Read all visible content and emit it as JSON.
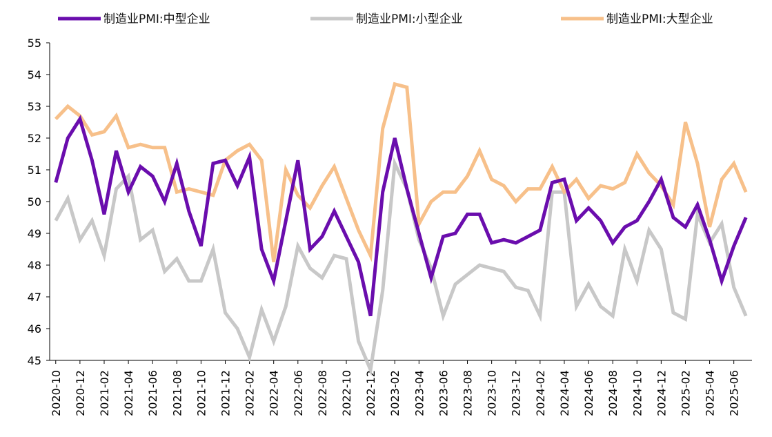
{
  "chart_data": {
    "type": "line",
    "x": [
      "2020-10",
      "2020-11",
      "2020-12",
      "2021-01",
      "2021-02",
      "2021-03",
      "2021-04",
      "2021-05",
      "2021-06",
      "2021-07",
      "2021-08",
      "2021-09",
      "2021-10",
      "2021-11",
      "2021-12",
      "2022-01",
      "2022-02",
      "2022-03",
      "2022-04",
      "2022-05",
      "2022-06",
      "2022-07",
      "2022-08",
      "2022-09",
      "2022-10",
      "2022-11",
      "2022-12",
      "2023-01",
      "2023-02",
      "2023-03",
      "2023-04",
      "2023-05",
      "2023-06",
      "2023-07",
      "2023-08",
      "2023-09",
      "2023-10",
      "2023-11",
      "2023-12",
      "2024-01",
      "2024-02",
      "2024-03",
      "2024-04",
      "2024-05",
      "2024-06",
      "2024-07",
      "2024-08",
      "2024-09",
      "2024-10",
      "2024-11",
      "2024-12",
      "2025-01",
      "2025-02",
      "2025-03",
      "2025-04",
      "2025-05",
      "2025-06",
      "2025-07"
    ],
    "tick_labels": [
      "2020-10",
      "2020-12",
      "2021-02",
      "2021-04",
      "2021-06",
      "2021-08",
      "2021-10",
      "2021-12",
      "2022-02",
      "2022-04",
      "2022-06",
      "2022-08",
      "2022-10",
      "2022-12",
      "2023-02",
      "2023-04",
      "2023-06",
      "2023-08",
      "2023-10",
      "2023-12",
      "2024-02",
      "2024-04",
      "2024-06",
      "2024-08",
      "2024-10",
      "2024-12",
      "2025-02",
      "2025-04",
      "2025-06"
    ],
    "series": [
      {
        "name": "制造业PMI:中型企业",
        "color": "#6a0dad",
        "values": [
          50.6,
          52.0,
          52.6,
          51.3,
          49.6,
          51.6,
          50.3,
          51.1,
          50.8,
          50.0,
          51.2,
          49.7,
          48.6,
          51.2,
          51.3,
          50.5,
          51.4,
          48.5,
          47.5,
          49.4,
          51.3,
          48.5,
          48.9,
          49.7,
          48.9,
          48.1,
          46.4,
          50.3,
          52.0,
          50.4,
          49.0,
          47.6,
          48.9,
          49.0,
          49.6,
          49.6,
          48.7,
          48.8,
          48.7,
          48.9,
          49.1,
          50.6,
          50.7,
          49.4,
          49.8,
          49.4,
          48.7,
          49.2,
          49.4,
          50.0,
          50.7,
          49.5,
          49.2,
          49.9,
          48.8,
          47.5,
          48.6,
          49.5
        ]
      },
      {
        "name": "制造业PMI:小型企业",
        "color": "#c8c8c8",
        "values": [
          49.4,
          50.1,
          48.8,
          49.4,
          48.3,
          50.4,
          50.8,
          48.8,
          49.1,
          47.8,
          48.2,
          47.5,
          47.5,
          48.5,
          46.5,
          46.0,
          45.1,
          46.6,
          45.6,
          46.7,
          48.6,
          47.9,
          47.6,
          48.3,
          48.2,
          45.6,
          44.7,
          47.2,
          51.2,
          50.4,
          48.8,
          47.9,
          46.4,
          47.4,
          47.7,
          48.0,
          47.9,
          47.8,
          47.3,
          47.2,
          46.4,
          50.3,
          50.3,
          46.7,
          47.4,
          46.7,
          46.4,
          48.5,
          47.5,
          49.1,
          48.5,
          46.5,
          46.3,
          49.6,
          48.7,
          49.3,
          47.3,
          46.4
        ]
      },
      {
        "name": "制造业PMI:大型企业",
        "color": "#f7c08a",
        "values": [
          52.6,
          53.0,
          52.7,
          52.1,
          52.2,
          52.7,
          51.7,
          51.8,
          51.7,
          51.7,
          50.3,
          50.4,
          50.3,
          50.2,
          51.3,
          51.6,
          51.8,
          51.3,
          48.1,
          51.0,
          50.2,
          49.8,
          50.5,
          51.1,
          50.1,
          49.1,
          48.3,
          52.3,
          53.7,
          53.6,
          49.3,
          50.0,
          50.3,
          50.3,
          50.8,
          51.6,
          50.7,
          50.5,
          50.0,
          50.4,
          50.4,
          51.1,
          50.3,
          50.7,
          50.1,
          50.5,
          50.4,
          50.6,
          51.5,
          50.9,
          50.5,
          49.9,
          52.5,
          51.2,
          49.2,
          50.7,
          51.2,
          50.3
        ]
      }
    ],
    "ylim": [
      45,
      55
    ],
    "yticks": [
      45,
      46,
      47,
      48,
      49,
      50,
      51,
      52,
      53,
      54,
      55
    ],
    "legend_position": "top",
    "grid": false
  }
}
